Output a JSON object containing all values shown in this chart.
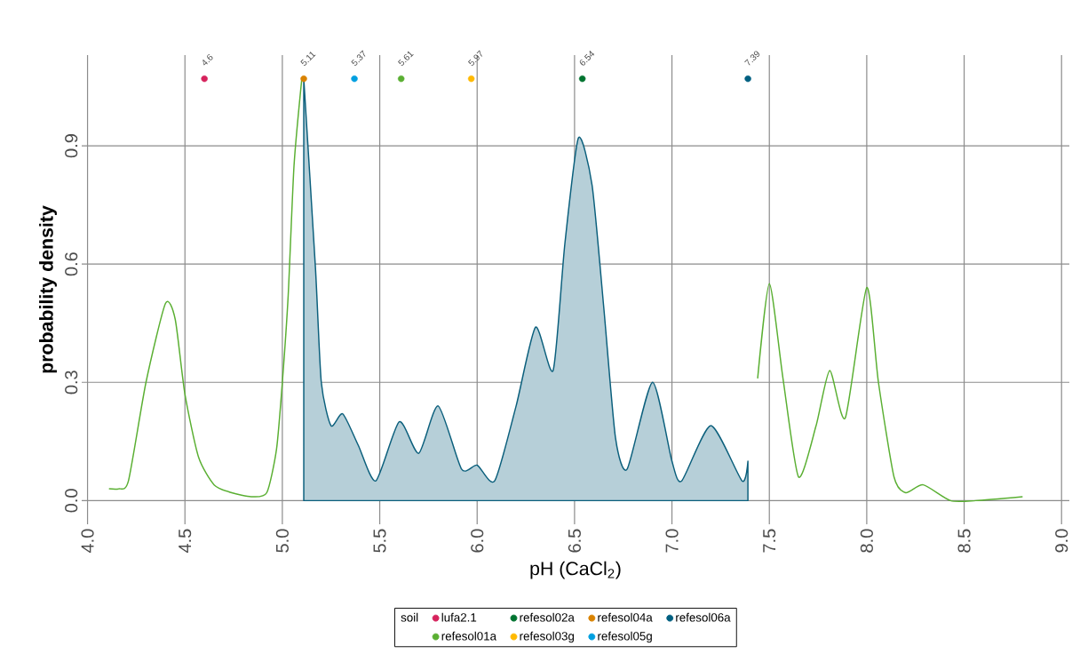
{
  "chart_data": {
    "type": "line",
    "xlabel": "pH (CaCl$_{2}$)",
    "ylabel": "probability density",
    "legend_title": "soil",
    "legend": "bottom",
    "grid": true,
    "xlim": [
      3.97,
      9.04
    ],
    "ylim": [
      -0.06,
      1.13
    ],
    "xticks": [
      {
        "value": 4,
        "label": "4.0"
      },
      4.5,
      {
        "value": 5,
        "label": "5.0"
      },
      5.5,
      {
        "value": 6,
        "label": "6.0"
      },
      6.5,
      {
        "value": 7,
        "label": "7.0"
      },
      7.5,
      {
        "value": 8,
        "label": "8.0"
      },
      8.5,
      {
        "value": 9,
        "label": "9.0"
      }
    ],
    "yticks": [
      {
        "value": 0,
        "label": "0.0"
      },
      0.3,
      0.6,
      0.9
    ],
    "series": [
      {
        "color": "#5aaf32",
        "x": [
          4.11,
          4.16,
          4.21,
          4.3,
          4.4,
          4.45,
          4.5,
          4.57,
          4.65,
          4.74,
          4.84,
          4.92,
          4.97,
          5.0,
          5.03,
          5.06,
          5.1,
          6.5,
          7.44,
          7.5,
          7.57,
          7.65,
          7.74,
          7.81,
          7.89,
          8.0,
          8.06,
          8.14,
          8.2,
          8.29,
          8.43,
          8.56,
          8.8
        ],
        "values": [
          0.03,
          0.03,
          0.05,
          0.3,
          0.5,
          0.46,
          0.27,
          0.11,
          0.04,
          0.02,
          0.01,
          0.02,
          0.13,
          0.3,
          0.52,
          0.85,
          1.07,
          null,
          0.31,
          0.55,
          0.31,
          0.06,
          0.19,
          0.33,
          0.21,
          0.54,
          0.3,
          0.06,
          0.02,
          0.04,
          0.0,
          0.0,
          0.01
        ]
      },
      {
        "type": "area",
        "color": "#0b5f7c",
        "x": [
          5.11,
          5.17,
          5.2,
          5.25,
          5.31,
          5.39,
          5.48,
          5.6,
          5.7,
          5.8,
          5.92,
          6.0,
          6.09,
          6.2,
          6.3,
          6.39,
          6.45,
          6.52,
          6.59,
          6.65,
          6.71,
          6.77,
          6.9,
          7.0,
          7.05,
          7.2,
          7.36,
          7.39
        ],
        "values": [
          1.07,
          0.59,
          0.3,
          0.19,
          0.22,
          0.14,
          0.05,
          0.2,
          0.12,
          0.24,
          0.08,
          0.09,
          0.05,
          0.24,
          0.44,
          0.33,
          0.65,
          0.92,
          0.8,
          0.49,
          0.16,
          0.08,
          0.3,
          0.1,
          0.05,
          0.19,
          0.05,
          0.1
        ]
      },
      {
        "type": "scatter",
        "marker": "circle",
        "name": "lufa2.1",
        "color": "#d6225c",
        "x": [
          4.6
        ],
        "values": [
          1.07
        ]
      },
      {
        "type": "scatter",
        "marker": "circle",
        "name": "refesol01a",
        "color": "#5aaf32",
        "x": [
          5.61
        ],
        "values": [
          1.07
        ]
      },
      {
        "type": "scatter",
        "marker": "circle",
        "name": "refesol02a",
        "color": "#00732f",
        "x": [
          6.54
        ],
        "values": [
          1.07
        ]
      },
      {
        "type": "scatter",
        "marker": "circle",
        "name": "refesol03g",
        "color": "#ffb900",
        "x": [
          5.97
        ],
        "values": [
          1.07
        ]
      },
      {
        "type": "scatter",
        "marker": "circle",
        "name": "refesol04a",
        "color": "#d98200",
        "x": [
          5.11
        ],
        "values": [
          1.07
        ]
      },
      {
        "type": "scatter",
        "marker": "circle",
        "name": "refesol05g",
        "color": "#009fe0",
        "x": [
          5.37
        ],
        "values": [
          1.07
        ]
      },
      {
        "type": "scatter",
        "marker": "circle",
        "name": "refesol06a",
        "color": "#005f80",
        "x": [
          7.39
        ],
        "values": [
          1.07
        ]
      }
    ],
    "annotations": [
      {
        "text": "4.6",
        "x": 4.6,
        "y": 1.07
      },
      {
        "text": "5.11",
        "x": 5.11,
        "y": 1.07
      },
      {
        "text": "5.37",
        "x": 5.37,
        "y": 1.07
      },
      {
        "text": "5.61",
        "x": 5.61,
        "y": 1.07
      },
      {
        "text": "5.97",
        "x": 5.97,
        "y": 1.07
      },
      {
        "text": "6.54",
        "x": 6.54,
        "y": 1.07
      },
      {
        "text": "7.39",
        "x": 7.39,
        "y": 1.07
      }
    ]
  }
}
